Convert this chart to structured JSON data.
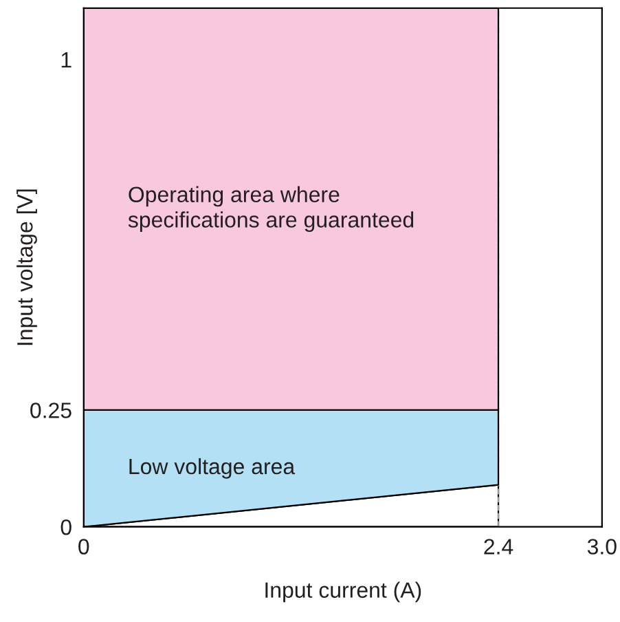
{
  "chart_data": {
    "type": "area",
    "xlabel": "Input current (A)",
    "ylabel": "Input voltage [V]",
    "x": [
      0,
      2.4
    ],
    "series": [
      {
        "color": "#ffffff",
        "values": [
          0,
          0.09
        ]
      },
      {
        "name": "Low voltage area",
        "color": "#b3e0f5",
        "values": [
          0.25,
          0.16
        ]
      },
      {
        "name": "Operating area where\nspecifications are guaranteed",
        "color": "#f8c9de",
        "values": [
          0.86,
          0.86
        ]
      }
    ],
    "stacked": true,
    "ref_lines": [
      {
        "axis": "x",
        "value": 2.4,
        "color": "#999999",
        "line_style": "dashed"
      }
    ],
    "xlim": [
      0,
      3.0
    ],
    "ylim": [
      0,
      1.11
    ],
    "xticks": [
      0,
      2.4,
      {
        "value": 3.0,
        "label": "3.0"
      }
    ],
    "yticks": [
      0,
      0.25,
      1
    ],
    "grid": false,
    "legend": false
  }
}
